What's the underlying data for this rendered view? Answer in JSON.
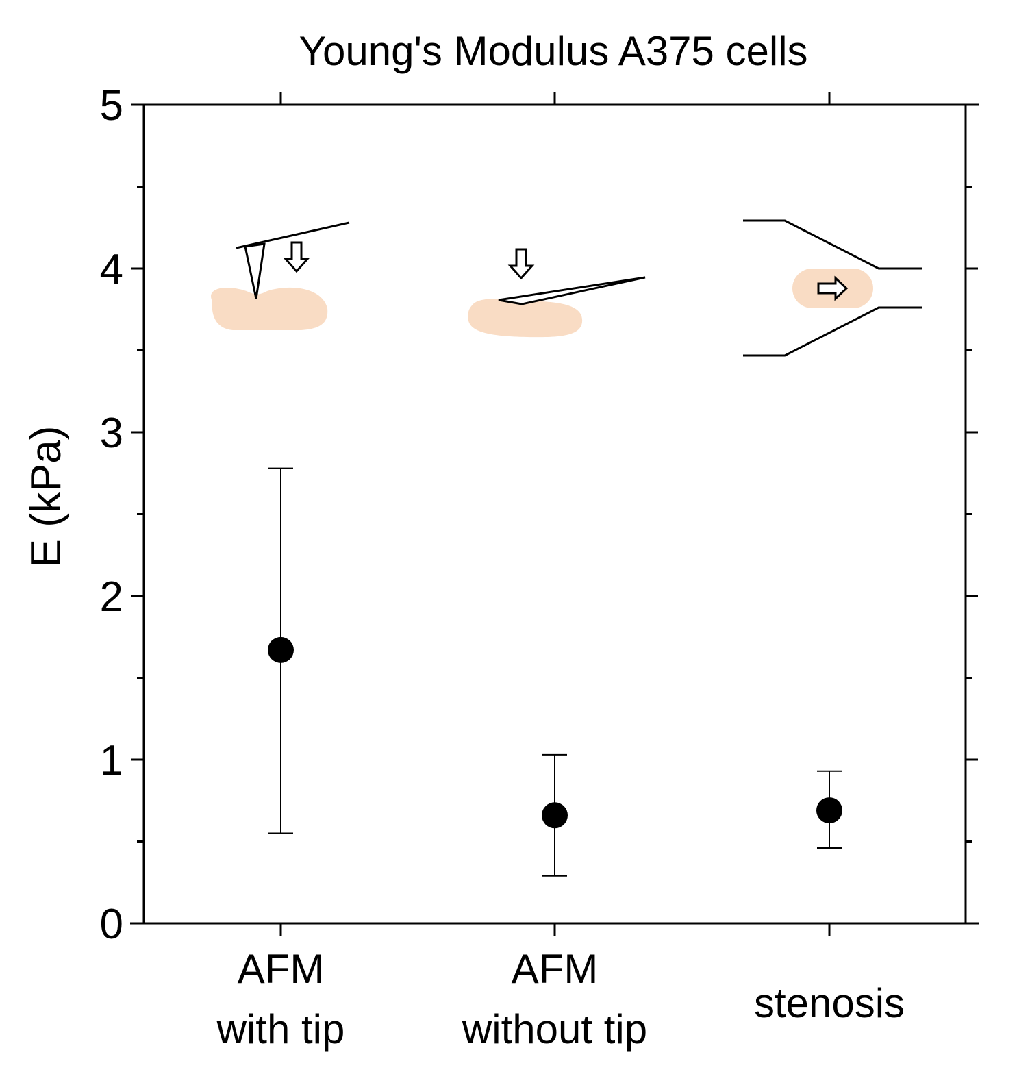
{
  "chart_data": {
    "type": "scatter",
    "title": "Young's Modulus A375 cells",
    "xlabel": "",
    "ylabel": "E (kPa)",
    "ylim": [
      0,
      5
    ],
    "yticks": [
      "0",
      "1",
      "2",
      "3",
      "4",
      "5"
    ],
    "categories": [
      [
        "AFM",
        "with tip"
      ],
      [
        "AFM",
        "without tip"
      ],
      [
        "stenosis"
      ]
    ],
    "values": [
      1.67,
      0.66,
      0.69
    ],
    "error_low": [
      0.55,
      0.29,
      0.46
    ],
    "error_high": [
      2.78,
      1.03,
      0.93
    ],
    "grid": false,
    "insets": [
      "AFM cantilever with tip indenting a cell",
      "AFM cantilever without tip compressing a cell",
      "cell flowing through a stenosis channel"
    ]
  },
  "colors": {
    "marker": "#000000",
    "cell": "#f9dcc4",
    "axis": "#000000"
  }
}
